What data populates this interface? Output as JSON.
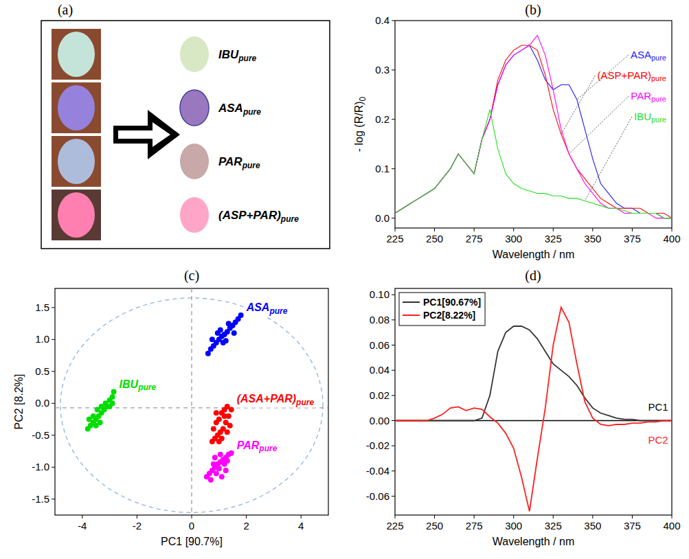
{
  "chart_data": [
    {
      "type": "image",
      "panel": "(a)",
      "items": [
        {
          "label": "IBU",
          "subscript": "pure"
        },
        {
          "label": "ASA",
          "subscript": "pure"
        },
        {
          "label": "PAR",
          "subscript": "pure"
        },
        {
          "label": "(ASP+PAR)",
          "subscript": "pure"
        }
      ]
    },
    {
      "type": "line",
      "panel": "(b)",
      "xlabel": "Wavelength / nm",
      "ylabel": "- log (R/R)",
      "ylabel_subscript": "0",
      "legend": "right",
      "x": [
        225,
        230,
        235,
        240,
        245,
        250,
        255,
        260,
        265,
        270,
        275,
        280,
        285,
        290,
        295,
        300,
        305,
        310,
        315,
        320,
        325,
        330,
        335,
        340,
        345,
        350,
        355,
        360,
        365,
        370,
        375,
        380,
        385,
        390,
        395,
        400
      ],
      "xlim": [
        225,
        400
      ],
      "xticks": [
        225,
        250,
        275,
        300,
        325,
        350,
        375,
        400
      ],
      "ylim": [
        -0.02,
        0.4
      ],
      "yticks": [
        {
          "value": 0,
          "label": "0.0"
        },
        0.1,
        0.2,
        0.3,
        0.4
      ],
      "series": [
        {
          "name": "ASA",
          "subscript": "pure",
          "color": "#1a1aff",
          "values": [
            0.01,
            0.02,
            0.03,
            0.04,
            0.05,
            0.06,
            0.08,
            0.1,
            0.13,
            0.11,
            0.09,
            0.16,
            0.2,
            0.27,
            0.31,
            0.33,
            0.34,
            0.35,
            0.32,
            0.28,
            0.26,
            0.27,
            0.27,
            0.24,
            0.18,
            0.12,
            0.07,
            0.05,
            0.03,
            0.02,
            0.02,
            0.01,
            0.01,
            0.01,
            0.0,
            0.0
          ]
        },
        {
          "name": "(ASP+PAR)",
          "subscript": "pure",
          "color": "#ff0000",
          "values": [
            0.01,
            0.02,
            0.03,
            0.04,
            0.05,
            0.06,
            0.08,
            0.1,
            0.13,
            0.11,
            0.09,
            0.16,
            0.2,
            0.28,
            0.32,
            0.34,
            0.35,
            0.35,
            0.34,
            0.29,
            0.22,
            0.17,
            0.13,
            0.1,
            0.08,
            0.06,
            0.04,
            0.03,
            0.02,
            0.02,
            0.02,
            0.02,
            0.01,
            0.01,
            0.01,
            0.0
          ]
        },
        {
          "name": "PAR",
          "subscript": "pure",
          "color": "#ff00ff",
          "values": [
            0.01,
            0.02,
            0.03,
            0.04,
            0.05,
            0.06,
            0.08,
            0.1,
            0.13,
            0.11,
            0.09,
            0.16,
            0.2,
            0.27,
            0.31,
            0.33,
            0.34,
            0.35,
            0.37,
            0.33,
            0.26,
            0.18,
            0.13,
            0.1,
            0.07,
            0.05,
            0.03,
            0.02,
            0.02,
            0.01,
            0.01,
            0.01,
            0.01,
            0.0,
            0.0,
            0.0
          ]
        },
        {
          "name": "IBU",
          "subscript": "pure",
          "color": "#22dd22",
          "values": [
            0.01,
            0.02,
            0.03,
            0.04,
            0.05,
            0.06,
            0.08,
            0.1,
            0.13,
            0.11,
            0.09,
            0.16,
            0.22,
            0.14,
            0.09,
            0.07,
            0.06,
            0.055,
            0.05,
            0.05,
            0.045,
            0.045,
            0.04,
            0.04,
            0.035,
            0.03,
            0.025,
            0.02,
            0.02,
            0.015,
            0.01,
            0.01,
            0.01,
            0.01,
            0.0,
            0.0
          ]
        }
      ]
    },
    {
      "type": "scatter",
      "panel": "(c)",
      "xlabel": "PC1 [90.7%]",
      "ylabel": "PC2 [8.2%]",
      "legend": "inline",
      "marker": "circle",
      "xlim": [
        -5,
        5
      ],
      "xticks": [
        -4,
        -2,
        0,
        2,
        4
      ],
      "ylim": [
        -1.75,
        1.8
      ],
      "yticks": [
        -1.5,
        {
          "value": -1,
          "label": "-1.0"
        },
        -0.5,
        {
          "value": 0,
          "label": "0.0"
        },
        0.5,
        {
          "value": 1,
          "label": "1.0"
        },
        1.5
      ],
      "ellipse": {
        "center": [
          0,
          -0.03
        ],
        "radii": [
          4.8,
          1.68
        ],
        "line_style": "dashed",
        "color": "#8fb4dc"
      },
      "reference_lines": {
        "x": 0,
        "y": -0.07,
        "line_style": "dashed",
        "color": "#9a9a9a"
      },
      "series": [
        {
          "name": "ASA",
          "subscript": "pure",
          "color": "#0000ff",
          "x": [
            0.6,
            0.7,
            0.8,
            0.9,
            1.0,
            1.1,
            1.2,
            1.3,
            1.4,
            1.5,
            1.6,
            1.7,
            1.8,
            0.75,
            0.95,
            1.15,
            1.35,
            1.55,
            1.25,
            1.05
          ],
          "values": [
            0.78,
            0.85,
            0.9,
            0.95,
            1.0,
            1.05,
            1.08,
            1.12,
            1.18,
            1.22,
            1.27,
            1.32,
            1.38,
            1.0,
            1.1,
            0.95,
            1.25,
            1.1,
            0.98,
            1.15
          ]
        },
        {
          "name": "(ASA+PAR)",
          "subscript": "pure",
          "color": "#ff0000",
          "x": [
            0.75,
            0.85,
            0.95,
            1.05,
            1.15,
            1.25,
            1.35,
            1.45,
            0.8,
            0.9,
            1.0,
            1.1,
            1.2,
            1.3,
            1.4,
            1.0,
            1.1,
            1.2,
            0.9,
            1.3
          ],
          "values": [
            -0.6,
            -0.55,
            -0.5,
            -0.45,
            -0.4,
            -0.3,
            -0.2,
            -0.1,
            -0.4,
            -0.3,
            -0.25,
            -0.15,
            -0.1,
            -0.45,
            -0.35,
            -0.6,
            -0.55,
            -0.2,
            -0.15,
            -0.05
          ]
        },
        {
          "name": "PAR",
          "subscript": "pure",
          "color": "#ff00ff",
          "x": [
            0.55,
            0.65,
            0.75,
            0.85,
            0.95,
            1.05,
            1.15,
            1.25,
            1.35,
            1.45,
            0.7,
            0.8,
            0.9,
            1.0,
            1.1,
            1.2,
            1.3,
            0.85,
            1.05,
            1.25
          ],
          "values": [
            -1.15,
            -1.1,
            -1.05,
            -1.0,
            -0.95,
            -0.92,
            -0.88,
            -0.85,
            -0.8,
            -0.78,
            -1.2,
            -0.95,
            -1.1,
            -1.02,
            -1.15,
            -0.95,
            -0.9,
            -0.85,
            -0.8,
            -1.05
          ]
        },
        {
          "name": "IBU",
          "subscript": "pure",
          "color": "#00dd00",
          "x": [
            -3.8,
            -3.7,
            -3.6,
            -3.5,
            -3.4,
            -3.3,
            -3.2,
            -3.1,
            -3.0,
            -2.9,
            -2.85,
            -3.75,
            -3.6,
            -3.45,
            -3.3,
            -3.15,
            -3.0,
            -2.9,
            -3.5,
            -3.35
          ],
          "values": [
            -0.4,
            -0.35,
            -0.3,
            -0.25,
            -0.2,
            -0.15,
            -0.1,
            -0.05,
            0.05,
            0.1,
            0.18,
            -0.25,
            -0.2,
            -0.1,
            -0.05,
            0.0,
            -0.05,
            0.0,
            -0.35,
            -0.3
          ]
        }
      ]
    },
    {
      "type": "line",
      "panel": "(d)",
      "xlabel": "Wavelength / nm",
      "legend": "top-left",
      "x": [
        225,
        230,
        235,
        240,
        245,
        250,
        255,
        260,
        265,
        270,
        275,
        280,
        285,
        290,
        295,
        300,
        305,
        310,
        315,
        320,
        325,
        330,
        335,
        340,
        345,
        350,
        355,
        360,
        365,
        370,
        375,
        380,
        385,
        390,
        395,
        400
      ],
      "xlim": [
        225,
        400
      ],
      "xticks": [
        225,
        250,
        275,
        300,
        325,
        350,
        375,
        400
      ],
      "ylim": [
        -0.075,
        0.105
      ],
      "yticks": [
        -0.06,
        -0.04,
        -0.02,
        {
          "value": 0,
          "label": "0.00"
        },
        0.02,
        0.04,
        0.06,
        0.08,
        {
          "value": 0.1,
          "label": "0.10"
        }
      ],
      "reference_lines": {
        "y": 0,
        "line_style": "solid",
        "color": "#000000"
      },
      "annotations": [
        {
          "text": "PC1",
          "x": 385,
          "y": 0.008,
          "color": "#000000"
        },
        {
          "text": "PC2",
          "x": 385,
          "y": -0.018,
          "color": "#ff2020"
        }
      ],
      "series": [
        {
          "name": "PC1[90.67%]",
          "color": "#333333",
          "values": [
            0,
            0,
            0,
            0,
            0,
            0,
            0,
            0,
            0,
            0,
            0,
            0.002,
            0.02,
            0.055,
            0.07,
            0.075,
            0.075,
            0.072,
            0.065,
            0.055,
            0.045,
            0.04,
            0.035,
            0.028,
            0.018,
            0.01,
            0.006,
            0.004,
            0.002,
            0.001,
            0.001,
            0,
            0,
            0,
            0,
            0
          ]
        },
        {
          "name": "PC2[8.22%]",
          "color": "#ff2020",
          "values": [
            0,
            0,
            0,
            0,
            0,
            0.002,
            0.005,
            0.01,
            0.011,
            0.008,
            0.01,
            0.009,
            0.003,
            -0.002,
            -0.01,
            -0.022,
            -0.045,
            -0.072,
            -0.03,
            0.01,
            0.06,
            0.09,
            0.078,
            0.045,
            0.015,
            0.002,
            -0.003,
            -0.004,
            -0.003,
            -0.003,
            -0.002,
            -0.002,
            -0.001,
            -0.001,
            0,
            0
          ]
        }
      ]
    }
  ]
}
